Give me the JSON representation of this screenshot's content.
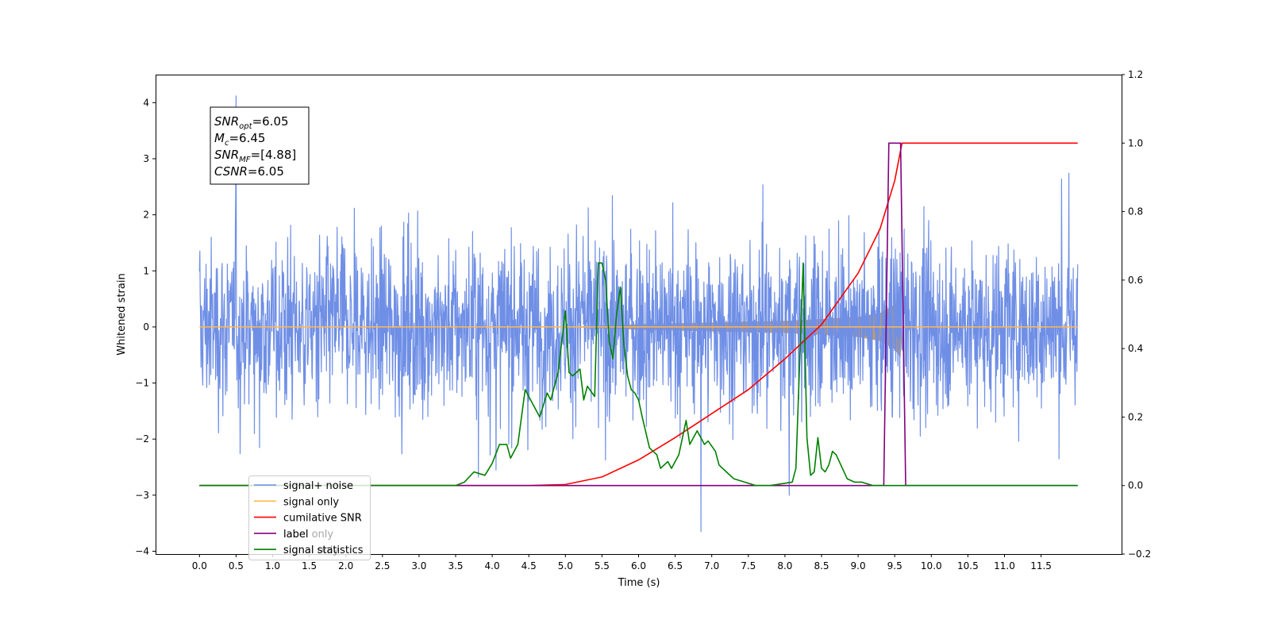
{
  "chart_data": {
    "type": "line",
    "xlabel": "Time (s)",
    "ylabel": "Whitened strain",
    "xlim": [
      -0.6,
      12.6
    ],
    "ylim": [
      -4.05,
      4.5
    ],
    "ylim_right": [
      -0.2,
      1.2
    ],
    "x_ticks": [
      "0.0",
      "0.5",
      "1.0",
      "1.5",
      "2.0",
      "2.5",
      "3.0",
      "3.5",
      "4.0",
      "4.5",
      "5.0",
      "5.5",
      "6.0",
      "6.5",
      "7.0",
      "7.5",
      "8.0",
      "8.5",
      "9.0",
      "9.5",
      "10.0",
      "10.5",
      "11.0",
      "11.5"
    ],
    "y_ticks_left": [
      "4",
      "3",
      "2",
      "1",
      "0",
      "−1",
      "−2",
      "−3",
      "−4"
    ],
    "y_ticks_right": [
      "1.2",
      "1.0",
      "0.8",
      "0.6",
      "0.4",
      "0.2",
      "0.0",
      "−0.2"
    ],
    "legend_position": "lower-left",
    "legend": [
      {
        "label": "signal+ noise",
        "color": "#6f8fe6"
      },
      {
        "label": "signal only",
        "color": "#ffb74d"
      },
      {
        "label": "cumilative SNR",
        "color": "#ff0000"
      },
      {
        "label": "label",
        "color": "#800080"
      },
      {
        "label": "signal statistics",
        "color": "#008000"
      }
    ],
    "legend_hidden_behind": [
      "label only",
      "signal only"
    ],
    "annotation": {
      "lines": [
        {
          "sym": "SNR",
          "sub": "opt",
          "value": "=6.05"
        },
        {
          "sym": "M",
          "sub": "c",
          "value": "=6.45"
        },
        {
          "sym": "SNR",
          "sub": "MF",
          "value": "=[4.88]"
        },
        {
          "sym": "CSNR",
          "sub": "",
          "value": "=6.05"
        }
      ]
    },
    "series": [
      {
        "name": "signal+ noise",
        "axis": "left",
        "color": "#6f8fe6",
        "x_range": [
          0.0,
          12.0
        ],
        "amplitude_band": [
          -2.7,
          3.0
        ],
        "extreme_values": {
          "max": 4.12,
          "min": -3.65
        }
      },
      {
        "name": "signal only",
        "axis": "left",
        "color": "#ffb74d",
        "x_range": [
          0.0,
          12.0
        ],
        "envelope": {
          "x": [
            0.0,
            5.0,
            6.0,
            7.0,
            8.0,
            8.5,
            9.0,
            9.3,
            9.5,
            9.58,
            9.6,
            12.0
          ],
          "y": [
            0.0,
            0.0,
            0.05,
            0.08,
            0.11,
            0.14,
            0.18,
            0.25,
            0.4,
            0.55,
            0.0,
            0.0
          ]
        }
      },
      {
        "name": "cumilative SNR",
        "axis": "right",
        "color": "#ff0000",
        "x": [
          0.0,
          4.0,
          4.5,
          5.0,
          5.5,
          6.0,
          6.5,
          7.0,
          7.5,
          8.0,
          8.5,
          9.0,
          9.3,
          9.5,
          9.6,
          12.0
        ],
        "y": [
          0.0,
          0.0,
          0.0,
          0.003,
          0.025,
          0.075,
          0.14,
          0.21,
          0.28,
          0.37,
          0.47,
          0.62,
          0.75,
          0.89,
          1.0,
          1.0
        ]
      },
      {
        "name": "label",
        "axis": "right",
        "color": "#800080",
        "x": [
          0.0,
          9.35,
          9.42,
          9.58,
          9.65,
          12.0
        ],
        "y": [
          0.0,
          0.0,
          1.0,
          1.0,
          0.0,
          0.0
        ]
      },
      {
        "name": "signal statistics",
        "axis": "right",
        "color": "#008000",
        "x": [
          0.0,
          3.5,
          3.62,
          3.75,
          3.9,
          4.0,
          4.1,
          4.2,
          4.25,
          4.35,
          4.45,
          4.55,
          4.65,
          4.75,
          4.8,
          4.9,
          5.0,
          5.05,
          5.1,
          5.2,
          5.25,
          5.3,
          5.4,
          5.45,
          5.5,
          5.55,
          5.6,
          5.65,
          5.7,
          5.75,
          5.8,
          5.85,
          5.9,
          5.95,
          6.0,
          6.05,
          6.15,
          6.25,
          6.3,
          6.4,
          6.45,
          6.55,
          6.65,
          6.7,
          6.8,
          6.9,
          6.95,
          7.05,
          7.1,
          7.2,
          7.3,
          7.45,
          7.6,
          7.8,
          8.1,
          8.15,
          8.25,
          8.3,
          8.35,
          8.4,
          8.45,
          8.5,
          8.55,
          8.6,
          8.65,
          8.7,
          8.85,
          8.95,
          9.05,
          9.2,
          12.0
        ],
        "y": [
          0.0,
          0.0,
          0.01,
          0.04,
          0.03,
          0.065,
          0.12,
          0.12,
          0.08,
          0.12,
          0.28,
          0.24,
          0.2,
          0.27,
          0.25,
          0.33,
          0.51,
          0.33,
          0.32,
          0.34,
          0.25,
          0.29,
          0.26,
          0.65,
          0.65,
          0.6,
          0.42,
          0.37,
          0.5,
          0.58,
          0.41,
          0.32,
          0.28,
          0.27,
          0.25,
          0.2,
          0.11,
          0.09,
          0.05,
          0.07,
          0.05,
          0.09,
          0.19,
          0.12,
          0.16,
          0.12,
          0.13,
          0.1,
          0.06,
          0.04,
          0.02,
          0.01,
          0.0,
          0.0,
          0.01,
          0.05,
          0.65,
          0.14,
          0.03,
          0.04,
          0.14,
          0.05,
          0.04,
          0.06,
          0.1,
          0.09,
          0.02,
          0.01,
          0.01,
          0.0,
          0.0
        ]
      }
    ]
  }
}
